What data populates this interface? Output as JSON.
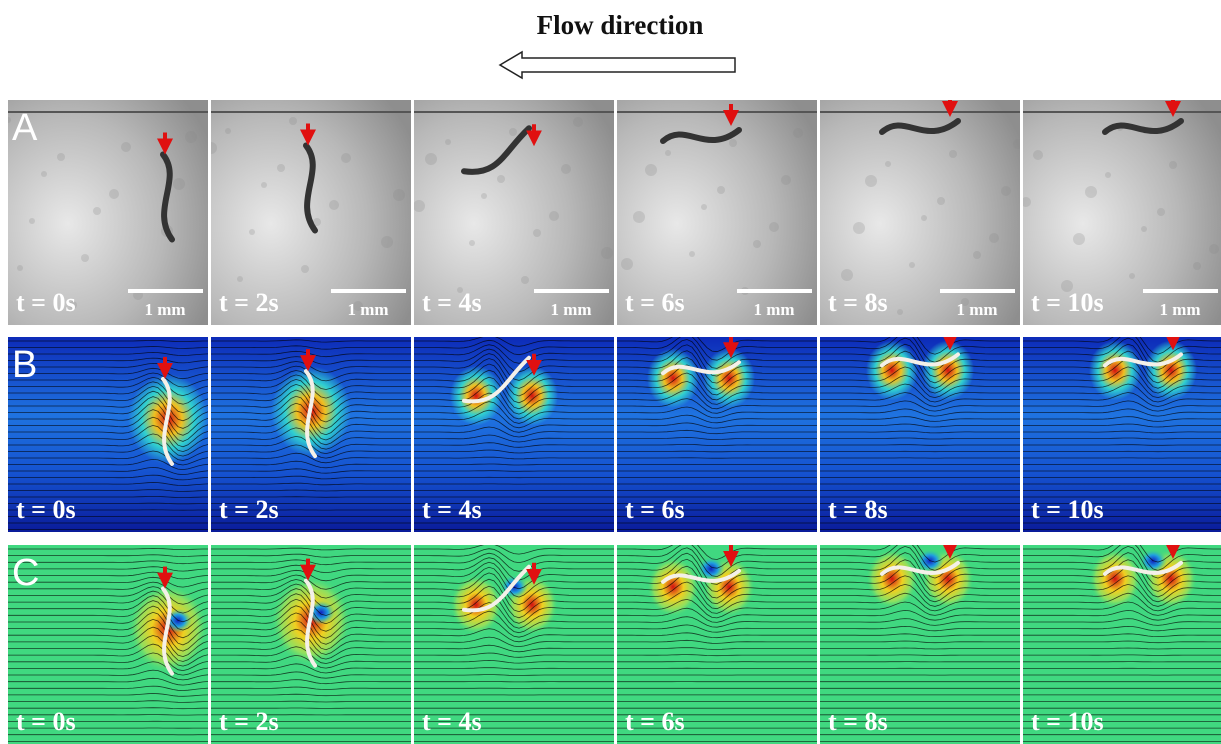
{
  "header": {
    "title": "Flow direction"
  },
  "rows": [
    {
      "label": "A",
      "times": [
        "t = 0s",
        "t = 2s",
        "t = 4s",
        "t = 6s",
        "t = 8s",
        "t = 10s"
      ],
      "scale_labels": [
        "1 mm",
        "1 mm",
        "1 mm",
        "1 mm",
        "1 mm",
        "1 mm"
      ]
    },
    {
      "label": "B",
      "times": [
        "t = 0s",
        "t = 2s",
        "t = 4s",
        "t = 6s",
        "t = 8s",
        "t = 10s"
      ]
    },
    {
      "label": "C",
      "times": [
        "t = 0s",
        "t = 2s",
        "t = 4s",
        "t = 6s",
        "t = 8s",
        "t = 10s"
      ]
    }
  ]
}
